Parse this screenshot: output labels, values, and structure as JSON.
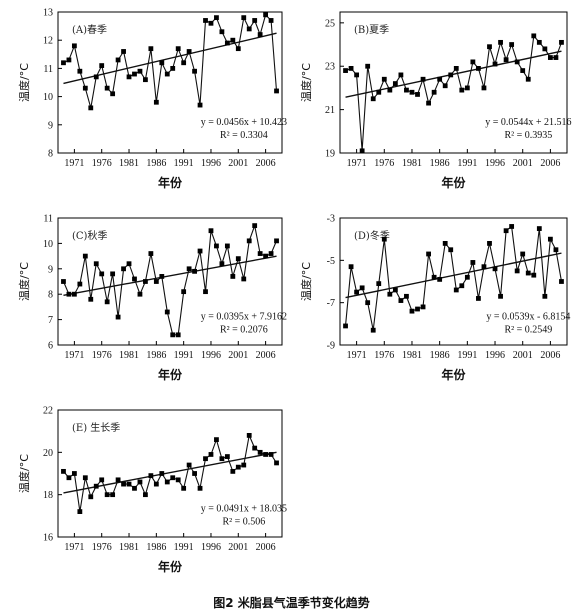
{
  "caption": "图2   米脂县气温季节变化趋势",
  "chart_data": [
    {
      "type": "line",
      "title": "(A)春季",
      "xlabel": "年份",
      "ylabel": "温度/°C",
      "x_ticks": [
        "1971",
        "1976",
        "1981",
        "1986",
        "1991",
        "1996",
        "2001",
        "2006"
      ],
      "y_ticks": [
        8,
        9,
        10,
        11,
        12,
        13
      ],
      "ylim": [
        8,
        13
      ],
      "x": [
        1969,
        1970,
        1971,
        1972,
        1973,
        1974,
        1975,
        1976,
        1977,
        1978,
        1979,
        1980,
        1981,
        1982,
        1983,
        1984,
        1985,
        1986,
        1987,
        1988,
        1989,
        1990,
        1991,
        1992,
        1993,
        1994,
        1995,
        1996,
        1997,
        1998,
        1999,
        2000,
        2001,
        2002,
        2003,
        2004,
        2005,
        2006,
        2007,
        2008
      ],
      "values": [
        11.2,
        11.3,
        11.8,
        10.9,
        10.3,
        9.6,
        10.7,
        11.1,
        10.3,
        10.1,
        11.3,
        11.6,
        10.7,
        10.8,
        10.9,
        10.6,
        11.7,
        9.8,
        11.2,
        10.8,
        11.0,
        11.7,
        11.2,
        11.6,
        10.9,
        9.7,
        12.7,
        12.6,
        12.8,
        12.3,
        11.9,
        12.0,
        11.7,
        12.8,
        12.4,
        12.7,
        12.2,
        12.9,
        12.7,
        10.2
      ],
      "trend": {
        "slope": 0.0456,
        "intercept": 10.423
      },
      "equation": "y = 0.0456x + 10.423",
      "r2": "R² = 0.3304"
    },
    {
      "type": "line",
      "title": "(B)夏季",
      "xlabel": "年份",
      "ylabel": "温度/°C",
      "x_ticks": [
        "1971",
        "1976",
        "1981",
        "1986",
        "1991",
        "1996",
        "2001",
        "2006"
      ],
      "y_ticks": [
        19,
        21,
        23,
        25
      ],
      "ylim": [
        19,
        25.5
      ],
      "x": [
        1969,
        1970,
        1971,
        1972,
        1973,
        1974,
        1975,
        1976,
        1977,
        1978,
        1979,
        1980,
        1981,
        1982,
        1983,
        1984,
        1985,
        1986,
        1987,
        1988,
        1989,
        1990,
        1991,
        1992,
        1993,
        1994,
        1995,
        1996,
        1997,
        1998,
        1999,
        2000,
        2001,
        2002,
        2003,
        2004,
        2005,
        2006,
        2007,
        2008
      ],
      "values": [
        22.8,
        22.9,
        22.6,
        19.1,
        23.0,
        21.5,
        21.8,
        22.4,
        21.9,
        22.2,
        22.6,
        21.9,
        21.8,
        21.7,
        22.4,
        21.3,
        21.8,
        22.4,
        22.1,
        22.6,
        22.9,
        21.9,
        22.0,
        23.2,
        22.9,
        22.0,
        23.9,
        23.1,
        24.1,
        23.3,
        24.0,
        23.2,
        22.8,
        22.4,
        24.4,
        24.1,
        23.8,
        23.4,
        23.4,
        24.1
      ],
      "trend": {
        "slope": 0.0544,
        "intercept": 21.516
      },
      "equation": "y = 0.0544x + 21.516",
      "r2": "R² = 0.3935"
    },
    {
      "type": "line",
      "title": "(C)秋季",
      "xlabel": "年份",
      "ylabel": "温度/°C",
      "x_ticks": [
        "1971",
        "1976",
        "1981",
        "1986",
        "1991",
        "1996",
        "2001",
        "2006"
      ],
      "y_ticks": [
        6,
        7,
        8,
        9,
        10,
        11
      ],
      "ylim": [
        6,
        11
      ],
      "x": [
        1969,
        1970,
        1971,
        1972,
        1973,
        1974,
        1975,
        1976,
        1977,
        1978,
        1979,
        1980,
        1981,
        1982,
        1983,
        1984,
        1985,
        1986,
        1987,
        1988,
        1989,
        1990,
        1991,
        1992,
        1993,
        1994,
        1995,
        1996,
        1997,
        1998,
        1999,
        2000,
        2001,
        2002,
        2003,
        2004,
        2005,
        2006,
        2007,
        2008
      ],
      "values": [
        8.5,
        8.0,
        8.0,
        8.4,
        9.5,
        7.8,
        9.2,
        8.8,
        7.7,
        8.8,
        7.1,
        9.0,
        9.2,
        8.6,
        8.0,
        8.5,
        9.6,
        8.5,
        8.7,
        7.3,
        6.4,
        6.4,
        8.1,
        9.0,
        8.9,
        9.7,
        8.1,
        10.5,
        9.9,
        9.2,
        9.9,
        8.7,
        9.4,
        8.6,
        10.1,
        10.7,
        9.6,
        9.5,
        9.6,
        10.1
      ],
      "trend": {
        "slope": 0.0395,
        "intercept": 7.9162
      },
      "equation": "y = 0.0395x + 7.9162",
      "r2": "R² = 0.2076"
    },
    {
      "type": "line",
      "title": "(D)冬季",
      "xlabel": "年份",
      "ylabel": "温度/°C",
      "x_ticks": [
        "1971",
        "1976",
        "1981",
        "1986",
        "1991",
        "1996",
        "2001",
        "2006"
      ],
      "y_ticks": [
        -9,
        -7,
        -5,
        -3
      ],
      "ylim": [
        -9,
        -3
      ],
      "x": [
        1969,
        1970,
        1971,
        1972,
        1973,
        1974,
        1975,
        1976,
        1977,
        1978,
        1979,
        1980,
        1981,
        1982,
        1983,
        1984,
        1985,
        1986,
        1987,
        1988,
        1989,
        1990,
        1991,
        1992,
        1993,
        1994,
        1995,
        1996,
        1997,
        1998,
        1999,
        2000,
        2001,
        2002,
        2003,
        2004,
        2005,
        2006,
        2007,
        2008
      ],
      "values": [
        -8.1,
        -5.3,
        -6.5,
        -6.3,
        -7.0,
        -8.3,
        -6.1,
        -4.0,
        -6.6,
        -6.4,
        -6.9,
        -6.7,
        -7.4,
        -7.3,
        -7.2,
        -4.7,
        -5.8,
        -5.9,
        -4.2,
        -4.5,
        -6.4,
        -6.2,
        -5.8,
        -5.1,
        -6.8,
        -5.3,
        -4.2,
        -5.4,
        -6.7,
        -3.6,
        -3.4,
        -5.5,
        -4.7,
        -5.6,
        -5.7,
        -3.5,
        -6.7,
        -4.0,
        -4.5,
        -6.0
      ],
      "trend": {
        "slope": 0.0539,
        "intercept": -6.8154
      },
      "equation": "y = 0.0539x - 6.8154",
      "r2": "R² = 0.2549"
    },
    {
      "type": "line",
      "title": "(E) 生长季",
      "xlabel": "年份",
      "ylabel": "温度/°C",
      "x_ticks": [
        "1971",
        "1976",
        "1981",
        "1986",
        "1991",
        "1996",
        "2001",
        "2006"
      ],
      "y_ticks": [
        16,
        18,
        20,
        22
      ],
      "ylim": [
        16,
        22
      ],
      "x": [
        1969,
        1970,
        1971,
        1972,
        1973,
        1974,
        1975,
        1976,
        1977,
        1978,
        1979,
        1980,
        1981,
        1982,
        1983,
        1984,
        1985,
        1986,
        1987,
        1988,
        1989,
        1990,
        1991,
        1992,
        1993,
        1994,
        1995,
        1996,
        1997,
        1998,
        1999,
        2000,
        2001,
        2002,
        2003,
        2004,
        2005,
        2006,
        2007,
        2008
      ],
      "values": [
        19.1,
        18.8,
        19.0,
        17.2,
        18.8,
        17.9,
        18.4,
        18.7,
        18.0,
        18.0,
        18.7,
        18.5,
        18.5,
        18.3,
        18.6,
        18.0,
        18.9,
        18.5,
        19.0,
        18.6,
        18.8,
        18.7,
        18.3,
        19.4,
        19.0,
        18.3,
        19.7,
        19.9,
        20.6,
        19.7,
        19.8,
        19.1,
        19.3,
        19.4,
        20.8,
        20.2,
        20.0,
        19.9,
        19.9,
        19.5
      ],
      "trend": {
        "slope": 0.0491,
        "intercept": 18.035
      },
      "equation": "y = 0.0491x + 18.035",
      "r2": "R² = 0.506"
    }
  ]
}
